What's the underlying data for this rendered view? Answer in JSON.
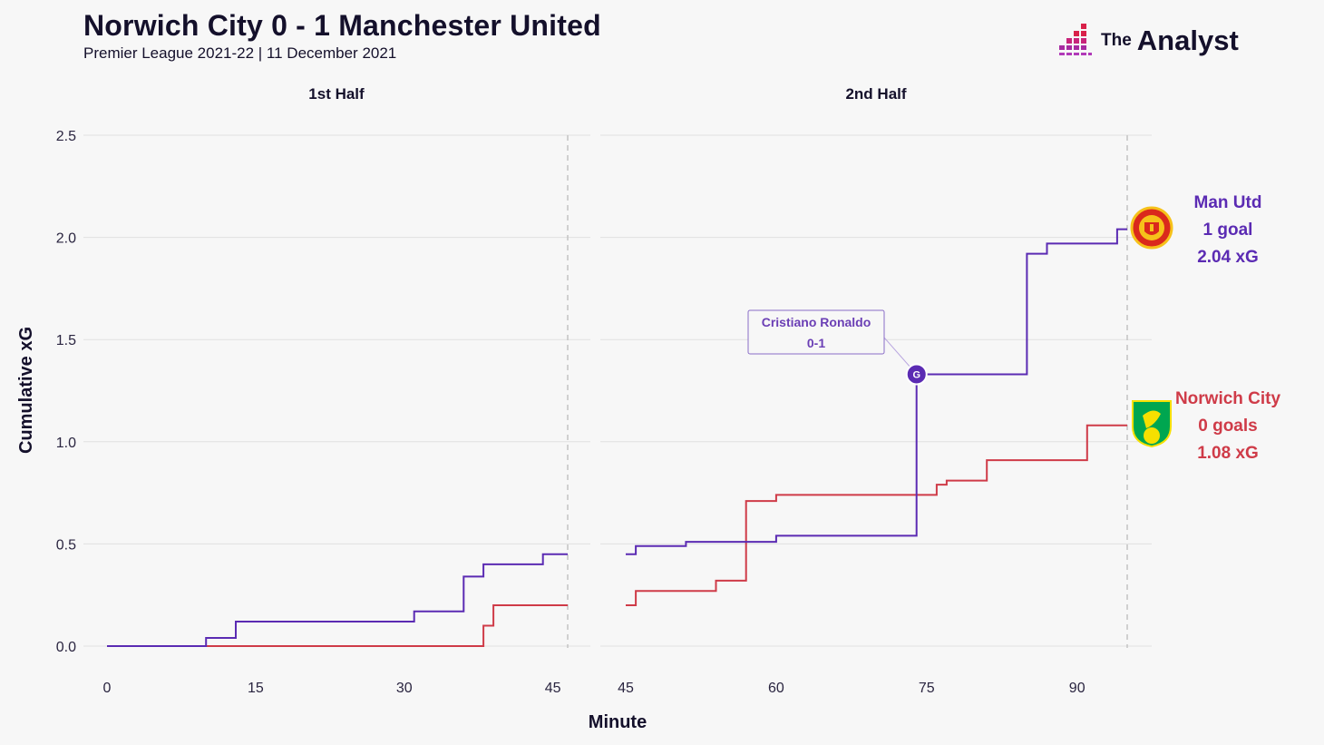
{
  "header": {
    "title": "Norwich City 0 - 1 Manchester United",
    "subtitle": "Premier League 2021-22 | 11 December 2021"
  },
  "brand": {
    "prefix": "The",
    "name": "Analyst"
  },
  "colors": {
    "man_utd": "#5b2bb3",
    "norwich": "#cf3b48",
    "grid": "#e0e0e0",
    "background": "#f7f7f7"
  },
  "chart_data": {
    "type": "line",
    "step": true,
    "ylabel": "Cumulative xG",
    "xlabel": "Minute",
    "ylim": [
      0,
      2.5
    ],
    "yticks": [
      "0.0",
      "0.5",
      "1.0",
      "1.5",
      "2.0",
      "2.5"
    ],
    "grid": true,
    "panels": [
      {
        "title": "1st Half",
        "xlim": [
          0,
          46.5
        ],
        "xticks": [
          0,
          15,
          30,
          45
        ],
        "end_marker": 46.5,
        "series": [
          {
            "team": "man_utd",
            "points": [
              [
                0,
                0
              ],
              [
                10,
                0
              ],
              [
                10,
                0.04
              ],
              [
                13,
                0.04
              ],
              [
                13,
                0.12
              ],
              [
                31,
                0.12
              ],
              [
                31,
                0.17
              ],
              [
                36,
                0.17
              ],
              [
                36,
                0.34
              ],
              [
                38,
                0.34
              ],
              [
                38,
                0.4
              ],
              [
                44,
                0.4
              ],
              [
                44,
                0.45
              ],
              [
                46.5,
                0.45
              ]
            ]
          },
          {
            "team": "norwich",
            "points": [
              [
                0,
                0
              ],
              [
                38,
                0
              ],
              [
                38,
                0.1
              ],
              [
                39,
                0.1
              ],
              [
                39,
                0.2
              ],
              [
                46.5,
                0.2
              ]
            ]
          }
        ]
      },
      {
        "title": "2nd Half",
        "xlim": [
          45,
          95
        ],
        "xticks": [
          45,
          60,
          75,
          90
        ],
        "end_marker": 95,
        "series": [
          {
            "team": "man_utd",
            "points": [
              [
                45,
                0.45
              ],
              [
                46,
                0.45
              ],
              [
                46,
                0.49
              ],
              [
                51,
                0.49
              ],
              [
                51,
                0.51
              ],
              [
                60,
                0.51
              ],
              [
                60,
                0.54
              ],
              [
                74,
                0.54
              ],
              [
                74,
                1.33
              ],
              [
                85,
                1.33
              ],
              [
                85,
                1.92
              ],
              [
                87,
                1.92
              ],
              [
                87,
                1.97
              ],
              [
                94,
                1.97
              ],
              [
                94,
                2.04
              ],
              [
                95,
                2.04
              ]
            ]
          },
          {
            "team": "norwich",
            "points": [
              [
                45,
                0.2
              ],
              [
                46,
                0.2
              ],
              [
                46,
                0.27
              ],
              [
                54,
                0.27
              ],
              [
                54,
                0.32
              ],
              [
                57,
                0.32
              ],
              [
                57,
                0.71
              ],
              [
                60,
                0.71
              ],
              [
                60,
                0.74
              ],
              [
                76,
                0.74
              ],
              [
                76,
                0.79
              ],
              [
                77,
                0.79
              ],
              [
                77,
                0.81
              ],
              [
                81,
                0.81
              ],
              [
                81,
                0.91
              ],
              [
                91,
                0.91
              ],
              [
                91,
                1.08
              ],
              [
                95,
                1.08
              ]
            ]
          }
        ]
      }
    ],
    "goal_annotation": {
      "minute": 74,
      "xg": 1.33,
      "marker": "G",
      "player": "Cristiano Ronaldo",
      "score": "0-1"
    }
  },
  "teams": {
    "man_utd": {
      "name": "Man Utd",
      "goals": "1 goal",
      "xg": "2.04 xG"
    },
    "norwich": {
      "name": "Norwich City",
      "goals": "0 goals",
      "xg": "1.08 xG"
    }
  }
}
